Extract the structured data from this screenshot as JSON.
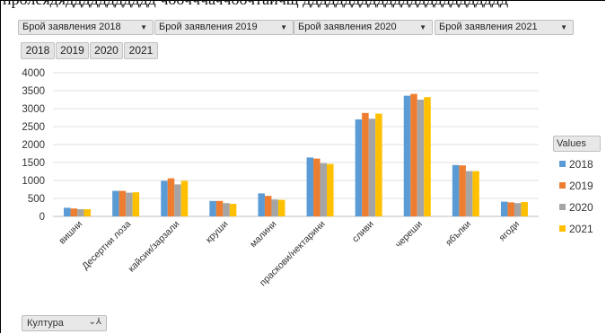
{
  "header_strip_text": "пролеядяддддддддддд чоочччаччоочтаичщ ддддддддддддддддддддддддд",
  "filters": [
    {
      "label": "Брой заявления 2018",
      "icon": "dropdown-arrow-icon"
    },
    {
      "label": "Брой заявления 2019",
      "icon": "dropdown-arrow-icon"
    },
    {
      "label": "Брой заявления 2020",
      "icon": "dropdown-arrow-icon"
    },
    {
      "label": "Брой заявления 2021",
      "icon": "dropdown-arrow-icon"
    }
  ],
  "year_buttons": [
    "2018",
    "2019",
    "2020",
    "2021"
  ],
  "legend_title": "Values",
  "axis_field": {
    "label": "Култура",
    "icon": "filter-icon"
  },
  "chart_data": {
    "type": "bar",
    "title": "",
    "xlabel": "",
    "ylabel": "",
    "ylim": [
      0,
      4000
    ],
    "yticks": [
      "0",
      "500",
      "1000",
      "1500",
      "2000",
      "2500",
      "3000",
      "3500",
      "4000"
    ],
    "grid": true,
    "legend_position": "right",
    "categories": [
      "вишни",
      "Десертни лоза",
      "кайсии/зарзали",
      "круши",
      "малини",
      "праскови/нектарини",
      "сливи",
      "череши",
      "ябълки",
      "ягоди"
    ],
    "series": [
      {
        "name": "2018",
        "color": "#5b9bd5",
        "values": [
          240,
          710,
          990,
          430,
          640,
          1640,
          2700,
          3360,
          1430,
          410
        ]
      },
      {
        "name": "2019",
        "color": "#ed7d31",
        "values": [
          220,
          710,
          1060,
          430,
          570,
          1610,
          2880,
          3410,
          1420,
          390
        ]
      },
      {
        "name": "2020",
        "color": "#a5a5a5",
        "values": [
          200,
          660,
          890,
          370,
          470,
          1480,
          2720,
          3250,
          1260,
          370
        ]
      },
      {
        "name": "2021",
        "color": "#ffc000",
        "values": [
          200,
          670,
          990,
          350,
          460,
          1460,
          2860,
          3320,
          1260,
          400
        ]
      }
    ]
  }
}
